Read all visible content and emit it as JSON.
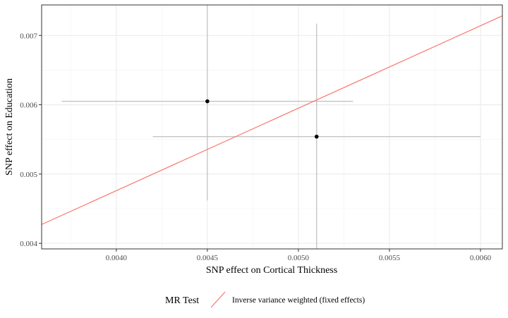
{
  "chart_data": {
    "type": "scatter",
    "xlabel": "SNP effect on Cortical Thickness",
    "ylabel": "SNP effect on Education",
    "xlim": [
      0.00359,
      0.00612
    ],
    "ylim": [
      0.00392,
      0.00744
    ],
    "x_ticks": [
      "0.0040",
      "0.0045",
      "0.0050",
      "0.0055",
      "0.0060"
    ],
    "x_tick_values": [
      0.004,
      0.0045,
      0.005,
      0.0055,
      0.006
    ],
    "y_ticks": [
      "0.004",
      "0.005",
      "0.006",
      "0.007"
    ],
    "y_tick_values": [
      0.004,
      0.005,
      0.006,
      0.007
    ],
    "grid": true,
    "points": [
      {
        "x": 0.0045,
        "y": 0.00605,
        "x_lo": 0.0037,
        "x_hi": 0.0053,
        "y_lo": 0.00462,
        "y_hi": 0.00749
      },
      {
        "x": 0.0051,
        "y": 0.00554,
        "x_lo": 0.0042,
        "x_hi": 0.006,
        "y_lo": 0.0039,
        "y_hi": 0.00717
      }
    ],
    "fit_line": {
      "slope": 1.19,
      "intercept": 0.0,
      "color": "#F8766D"
    },
    "errorbar_color": "#BEBEBE",
    "point_color": "#000000",
    "legend": {
      "position": "bottom",
      "title": "MR Test",
      "entries": [
        {
          "label": "Inverse variance weighted (fixed effects)",
          "color": "#F8766D"
        }
      ]
    }
  }
}
